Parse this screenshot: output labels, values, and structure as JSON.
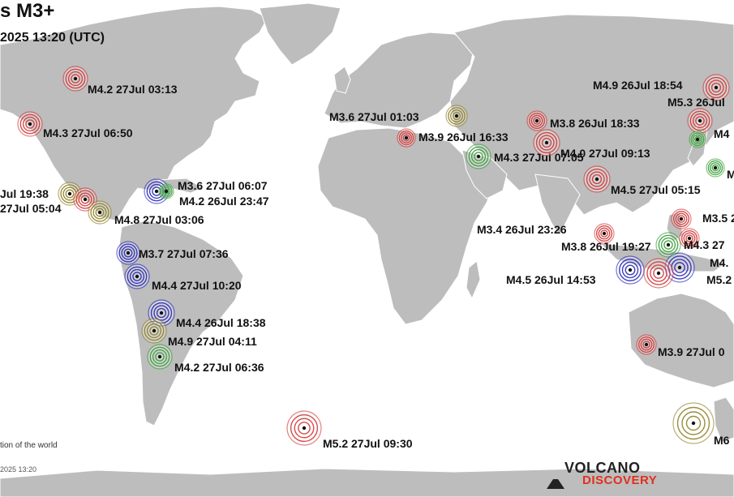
{
  "title": "s M3+",
  "subtitle": " 2025 13:20 (UTC)",
  "footnote": "tion of the world",
  "stamp": "2025 13:20",
  "logo": {
    "line1": "VOLCANO",
    "line2": "DISCOVERY"
  },
  "colors": {
    "ocean": "#ffffff",
    "land": "#bdbdbd",
    "red": "#d02c2c",
    "blue": "#1d1db8",
    "green": "#2e9a2e",
    "olive": "#8a7a1a"
  },
  "quakes": [
    {
      "label": "M4.2 27Jul 03:13",
      "color": "red"
    },
    {
      "label": "M4.3 27Jul 06:50",
      "color": "red"
    },
    {
      "label": "Jul 19:38",
      "color": "olive"
    },
    {
      "label": "27Jul 05:04",
      "color": "red"
    },
    {
      "label": "M4.8 27Jul 03:06",
      "color": "olive"
    },
    {
      "label": "M3.6 27Jul 06:07",
      "color": "blue"
    },
    {
      "label": "M4.2 26Jul 23:47",
      "color": "green"
    },
    {
      "label": "M3.7 27Jul 07:36",
      "color": "blue"
    },
    {
      "label": "M4.4 27Jul 10:20",
      "color": "blue"
    },
    {
      "label": "M4.4 26Jul 18:38",
      "color": "blue"
    },
    {
      "label": "M4.9 27Jul 04:11",
      "color": "olive"
    },
    {
      "label": "M4.2 27Jul 06:36",
      "color": "green"
    },
    {
      "label": "M5.2 27Jul 09:30",
      "color": "red"
    },
    {
      "label": "M3.6 27Jul 01:03",
      "color": "olive"
    },
    {
      "label": "M3.9 26Jul 16:33",
      "color": "red"
    },
    {
      "label": "M4.3 27Jul 07:05",
      "color": "green"
    },
    {
      "label": "M3.8 26Jul 18:33",
      "color": "red"
    },
    {
      "label": "M4.0 27Jul 09:13",
      "color": "red"
    },
    {
      "label": "M4.5 27Jul 05:15",
      "color": "red"
    },
    {
      "label": "M4.9 26Jul 18:54",
      "color": "red"
    },
    {
      "label": "M5.3 26Jul",
      "color": "red"
    },
    {
      "label": "M4",
      "color": "green"
    },
    {
      "label": "M",
      "color": "green"
    },
    {
      "label": "M3.5 2",
      "color": "red"
    },
    {
      "label": "M3.4 26Jul 23:26",
      "color": "red"
    },
    {
      "label": "M3.8 26Jul 19:27",
      "color": "green"
    },
    {
      "label": "M4.3 27",
      "color": "red"
    },
    {
      "label": "M4.5 26Jul 14:53",
      "color": "blue"
    },
    {
      "label": "M4.",
      "color": "blue"
    },
    {
      "label": "M5.2 2",
      "color": "red"
    },
    {
      "label": "M3.9 27Jul 0",
      "color": "red"
    },
    {
      "label": "M6",
      "color": "olive"
    }
  ]
}
